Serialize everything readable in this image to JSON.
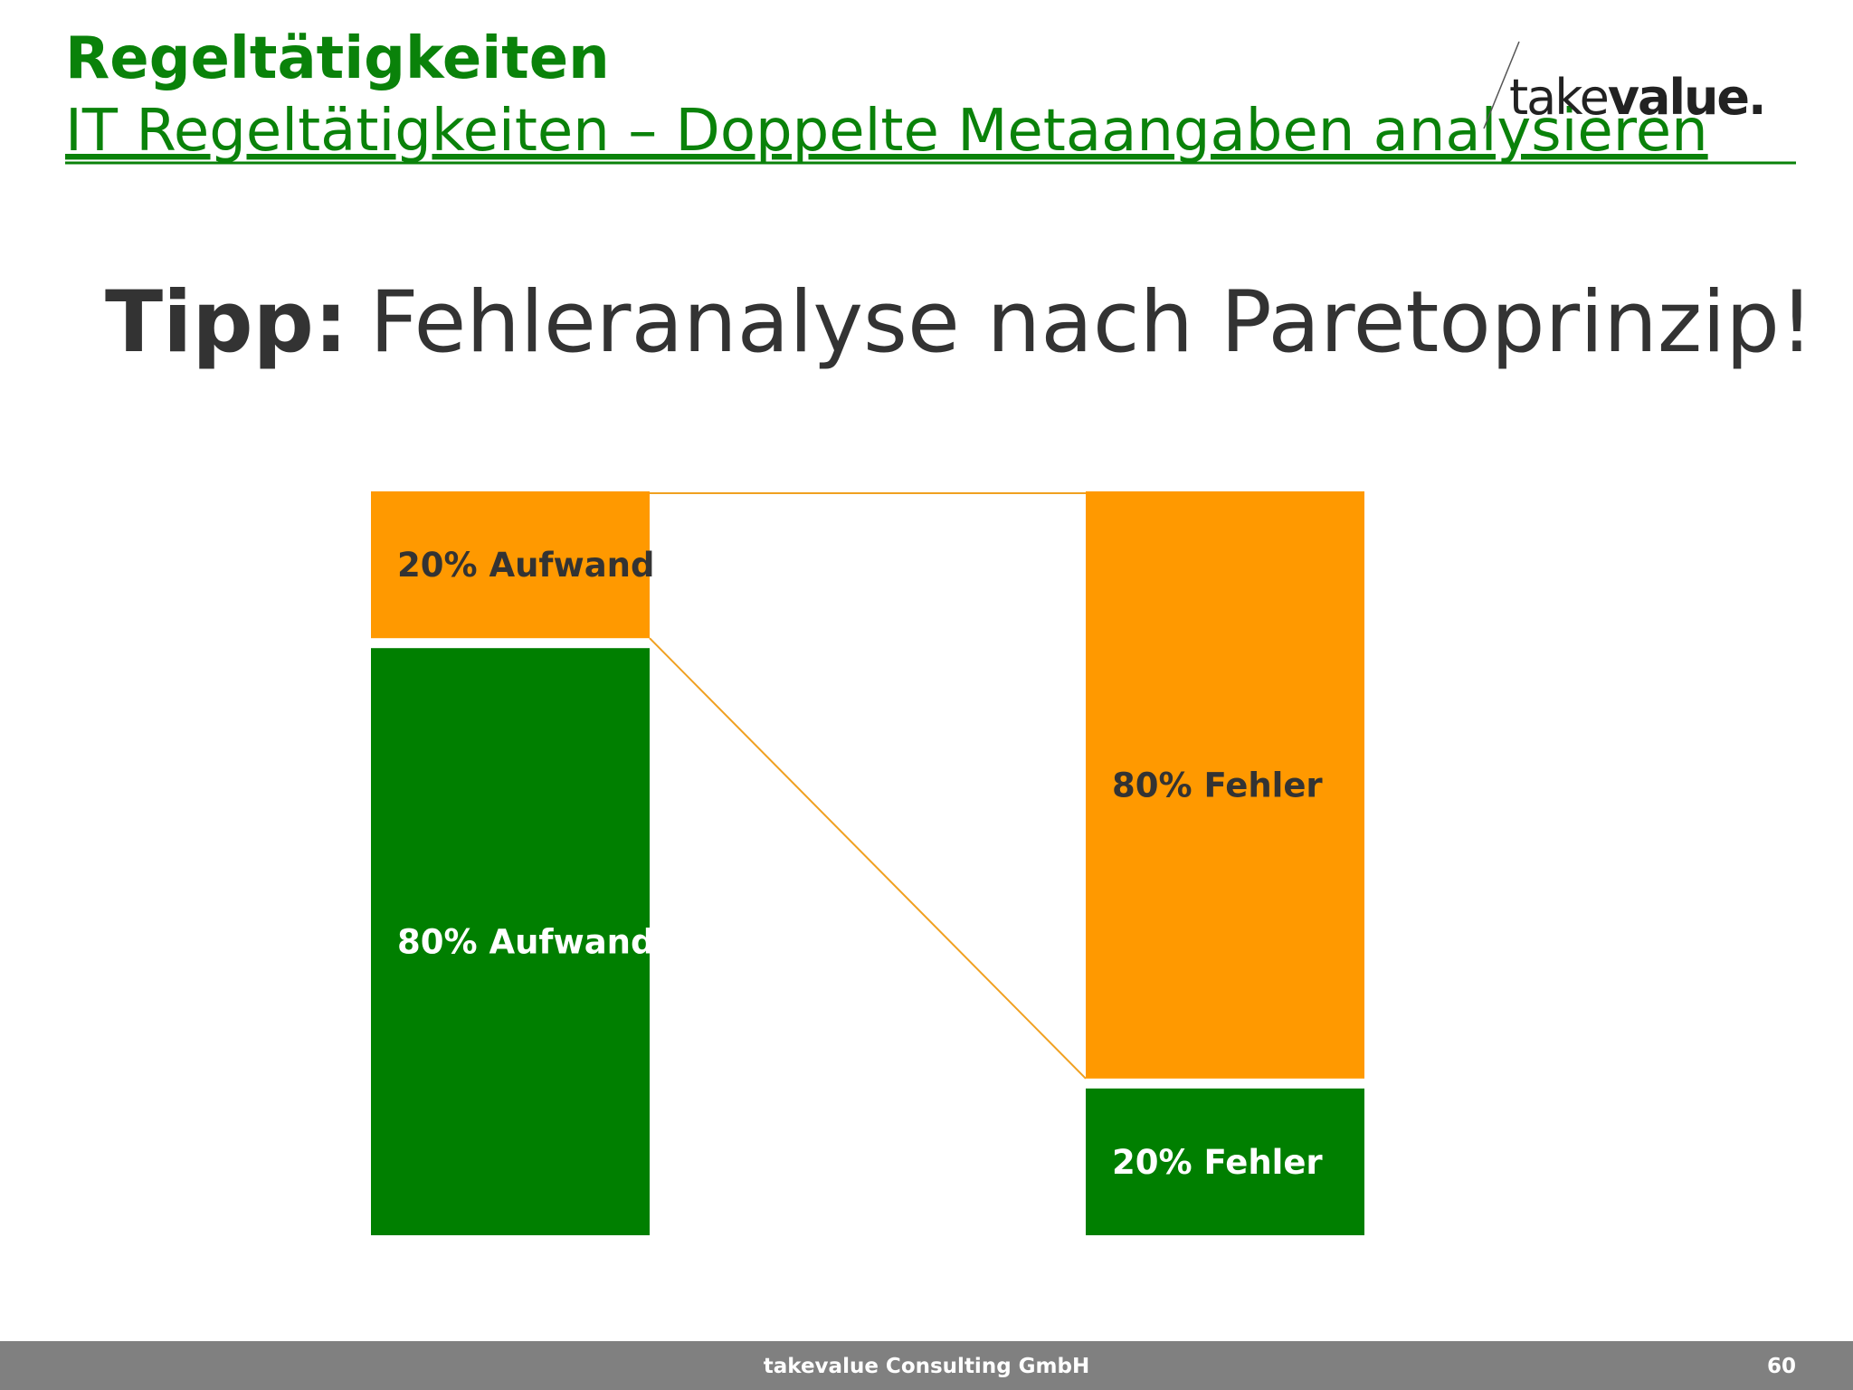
{
  "header": {
    "title": "Regeltätigkeiten",
    "subtitle": "IT Regeltätigkeiten – Doppelte Metaangaben analysieren",
    "logo": {
      "light": "take",
      "bold": "value."
    }
  },
  "tip": {
    "label": "Tipp:",
    "text": "Fehleranalyse nach Paretoprinzip!"
  },
  "diagram": {
    "columns": [
      {
        "segments": [
          {
            "label": "80% Aufwand",
            "value": 80,
            "color": "#007f00",
            "text_color": "#ffffff"
          },
          {
            "label": "20% Aufwand",
            "value": 20,
            "color": "#ff9900",
            "text_color": "#333333"
          }
        ]
      },
      {
        "segments": [
          {
            "label": "20% Fehler",
            "value": 20,
            "color": "#007f00",
            "text_color": "#ffffff"
          },
          {
            "label": "80% Fehler",
            "value": 80,
            "color": "#ff9900",
            "text_color": "#333333"
          }
        ]
      }
    ],
    "connector_color": "#f0a020"
  },
  "footer": {
    "company": "takevalue Consulting GmbH",
    "page": 60
  }
}
